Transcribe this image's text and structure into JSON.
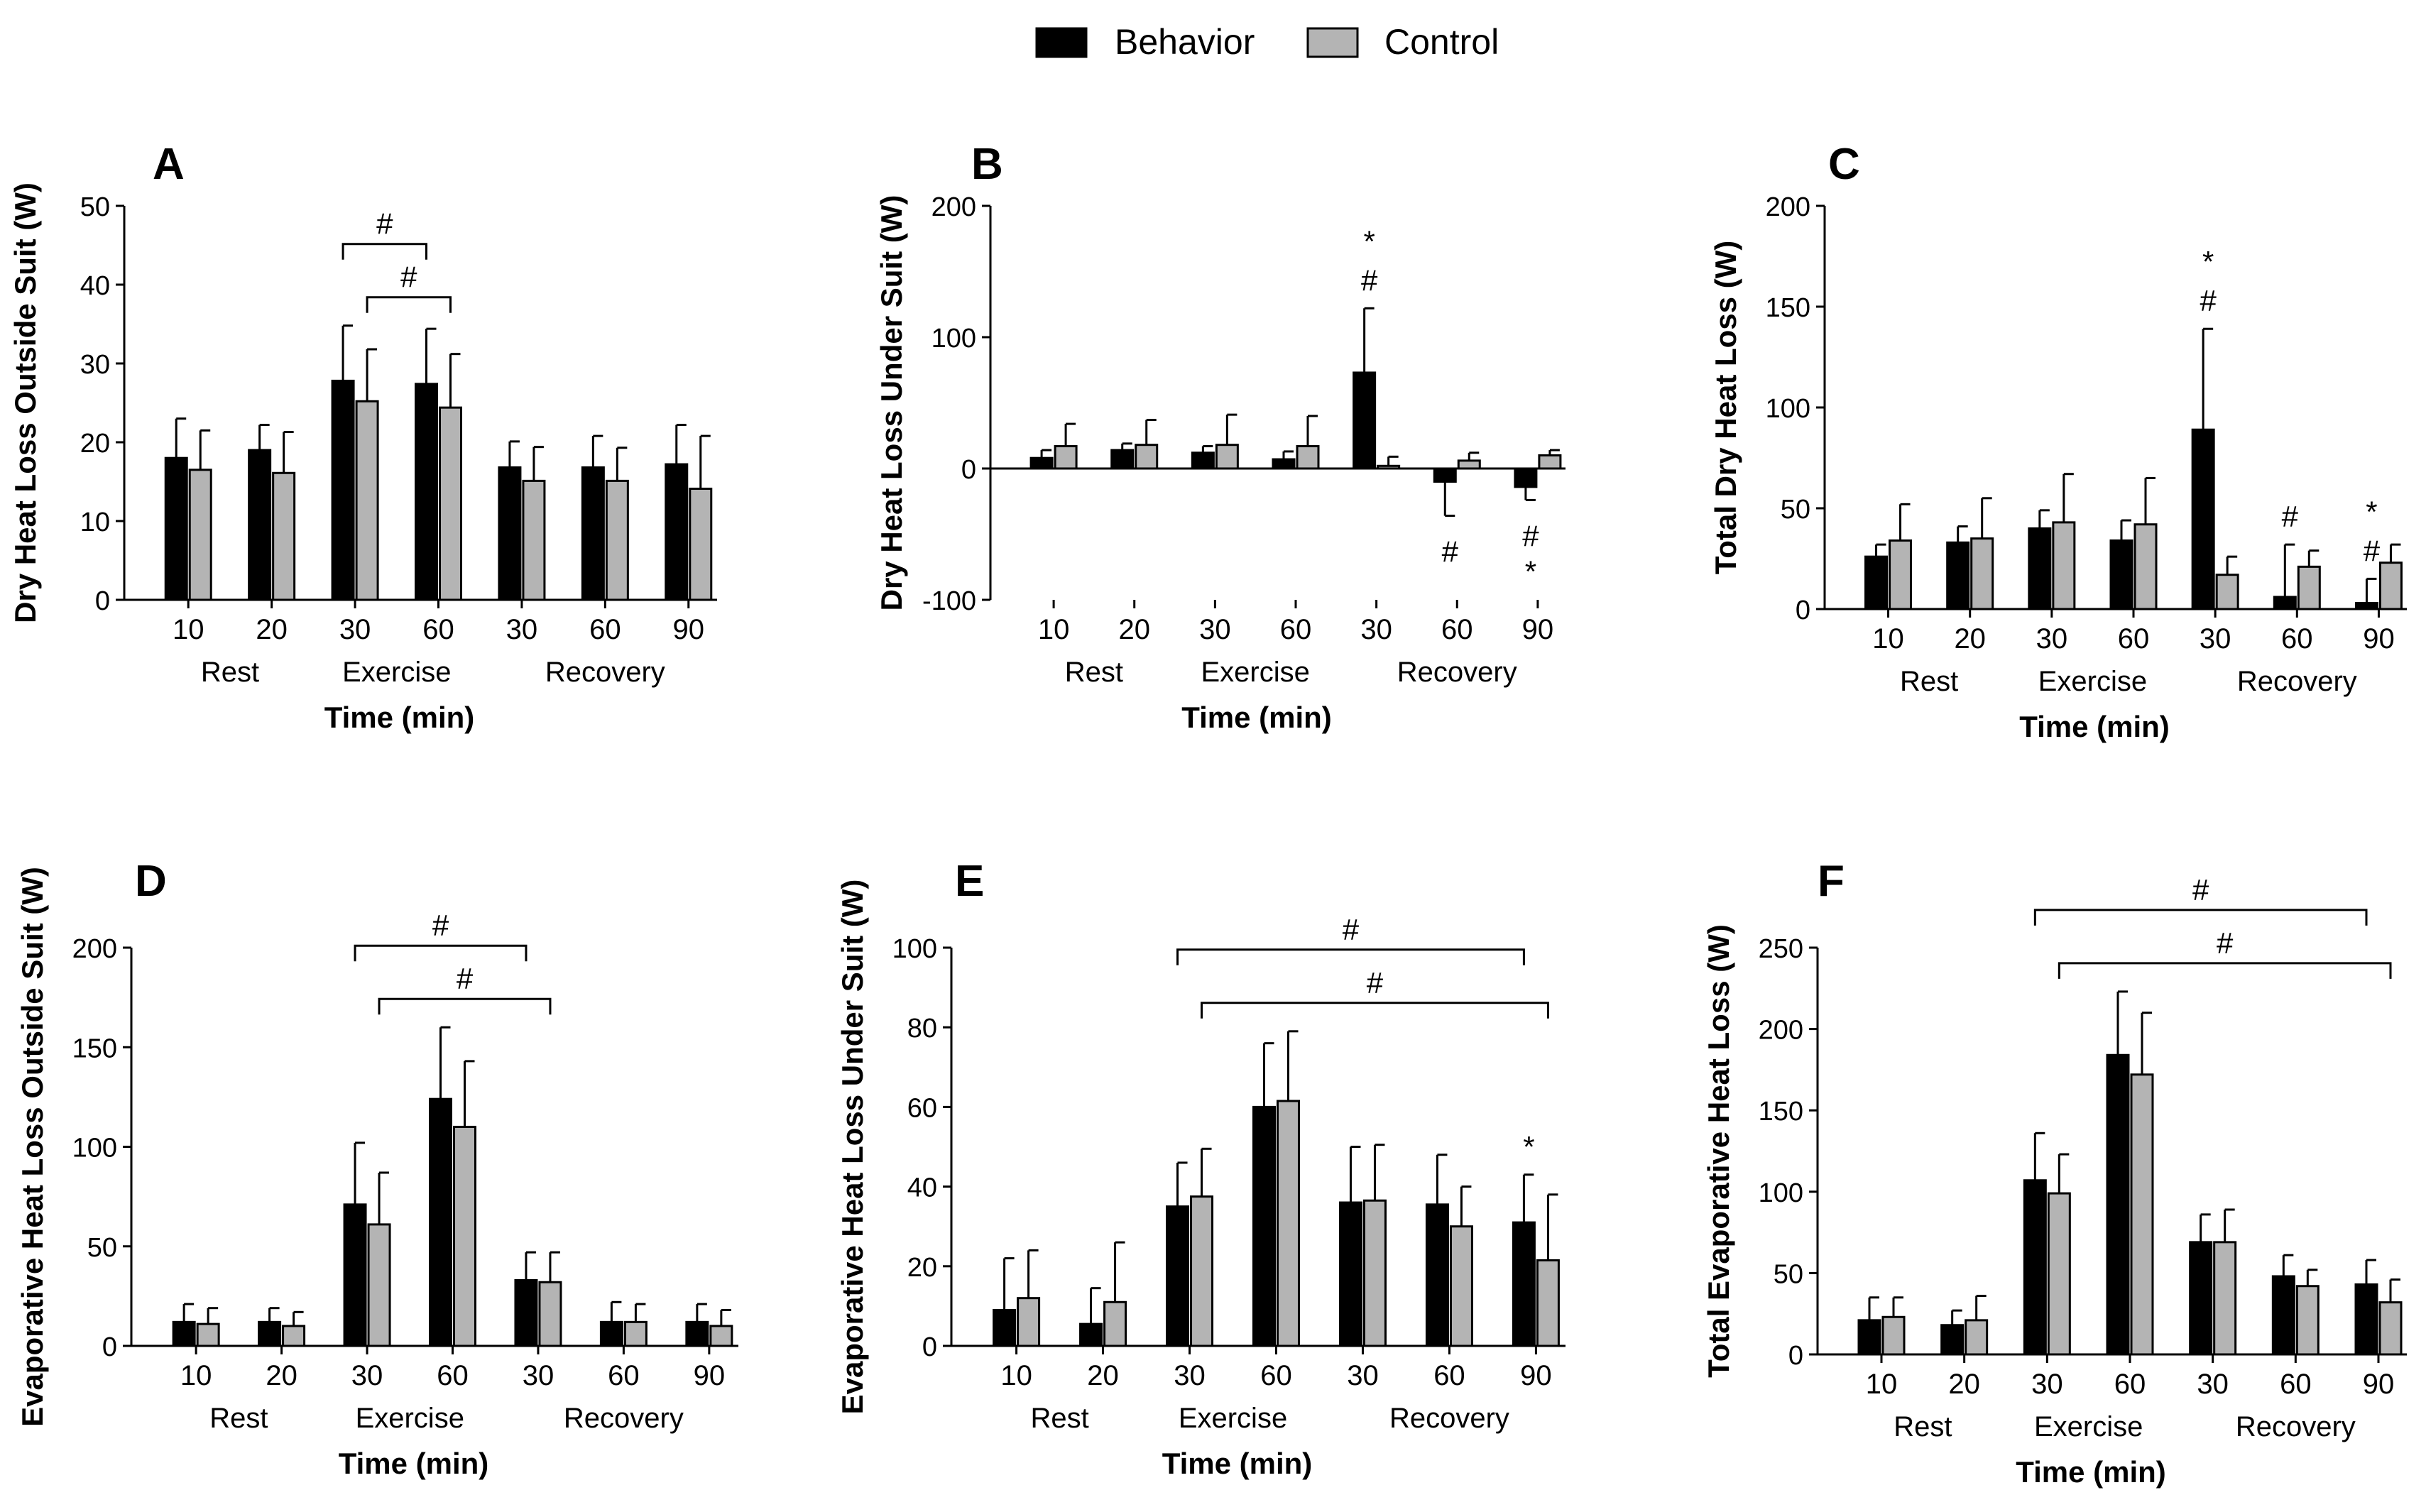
{
  "legend": {
    "entries": [
      {
        "label": "Behavior",
        "color": "#000000"
      },
      {
        "label": "Control",
        "color": "#b4b4b4"
      }
    ]
  },
  "time_groups": [
    "Rest",
    "Exercise",
    "Recovery"
  ],
  "series_colors": {
    "Behavior": "#000000",
    "Control": "#b4b4b4"
  },
  "chart_data": [
    {
      "panel": "A",
      "type": "bar",
      "ylabel": "Dry Heat Loss Outside Suit (W)",
      "xlabel": "Time (min)",
      "categories": [
        "10",
        "20",
        "30",
        "60",
        "30",
        "60",
        "90"
      ],
      "ylim": [
        0,
        50
      ],
      "yticks": [
        0,
        10,
        20,
        30,
        40,
        50
      ],
      "ytick_labels": [
        "0",
        "10",
        "20",
        "30",
        "40",
        "50"
      ],
      "series": [
        {
          "name": "Behavior",
          "values": [
            18,
            19,
            27.8,
            27.4,
            16.8,
            16.8,
            17.2
          ],
          "errors": [
            5,
            3.2,
            7,
            7,
            3.3,
            4,
            5
          ]
        },
        {
          "name": "Control",
          "values": [
            16.5,
            16.1,
            25.2,
            24.4,
            15.1,
            15.1,
            14.1
          ],
          "errors": [
            5,
            5.2,
            6.6,
            6.8,
            4.3,
            4.2,
            6.7
          ]
        }
      ],
      "annotations": [
        {
          "text": "#",
          "type": "bracket",
          "from": [
            2,
            "Behavior"
          ],
          "to": [
            3,
            "Behavior"
          ],
          "level": 1
        },
        {
          "text": "#",
          "type": "bracket",
          "from": [
            2,
            "Control"
          ],
          "to": [
            3,
            "Control"
          ],
          "level": 0
        }
      ]
    },
    {
      "panel": "B",
      "type": "bar",
      "ylabel": "Dry Heat Loss Under Suit (W)",
      "xlabel": "Time (min)",
      "categories": [
        "10",
        "20",
        "30",
        "60",
        "30",
        "60",
        "90"
      ],
      "ylim": [
        -100,
        200
      ],
      "yticks": [
        -100,
        0,
        100,
        200
      ],
      "ytick_labels": [
        "-100",
        "0",
        "100",
        "200"
      ],
      "series": [
        {
          "name": "Behavior",
          "values": [
            8,
            14,
            12,
            7,
            73,
            -10,
            -14
          ],
          "errors": [
            6,
            5,
            5,
            6,
            49,
            26,
            10
          ]
        },
        {
          "name": "Control",
          "values": [
            17,
            18,
            18,
            17,
            2,
            6,
            10
          ],
          "errors": [
            17,
            19,
            23,
            23,
            7,
            6,
            4
          ]
        }
      ],
      "annotations": [
        {
          "text": "*",
          "type": "mark",
          "at": [
            4,
            "Behavior"
          ],
          "position": "above",
          "offset": 1
        },
        {
          "text": "#",
          "type": "mark",
          "at": [
            4,
            "Behavior"
          ],
          "position": "above",
          "offset": 0
        },
        {
          "text": "#",
          "type": "mark",
          "at": [
            5,
            "Behavior"
          ],
          "position": "below",
          "offset": 0
        },
        {
          "text": "#",
          "type": "mark",
          "at": [
            6,
            "Behavior"
          ],
          "position": "below",
          "offset": 0
        },
        {
          "text": "*",
          "type": "mark",
          "at": [
            6,
            "Behavior"
          ],
          "position": "below",
          "offset": 1
        }
      ]
    },
    {
      "panel": "C",
      "type": "bar",
      "ylabel": "Total Dry Heat Loss (W)",
      "xlabel": "Time (min)",
      "categories": [
        "10",
        "20",
        "30",
        "60",
        "30",
        "60",
        "90"
      ],
      "ylim": [
        0,
        200
      ],
      "yticks": [
        0,
        50,
        100,
        150,
        200
      ],
      "ytick_labels": [
        "0",
        "50",
        "100",
        "150",
        "200"
      ],
      "series": [
        {
          "name": "Behavior",
          "values": [
            26,
            33,
            40,
            34,
            89,
            6,
            3
          ],
          "errors": [
            6,
            8,
            9,
            10,
            50,
            26,
            12
          ]
        },
        {
          "name": "Control",
          "values": [
            34,
            35,
            43,
            42,
            17,
            21,
            23
          ],
          "errors": [
            18,
            20,
            24,
            23,
            9,
            8,
            9
          ]
        }
      ],
      "annotations": [
        {
          "text": "*",
          "type": "mark",
          "at": [
            4,
            "Behavior"
          ],
          "position": "above",
          "offset": 1
        },
        {
          "text": "#",
          "type": "mark",
          "at": [
            4,
            "Behavior"
          ],
          "position": "above",
          "offset": 0
        },
        {
          "text": "#",
          "type": "mark",
          "at": [
            5,
            "Behavior"
          ],
          "position": "above",
          "offset": 0
        },
        {
          "text": "*",
          "type": "mark",
          "at": [
            6,
            "Behavior"
          ],
          "position": "above",
          "offset": 1
        },
        {
          "text": "#",
          "type": "mark",
          "at": [
            6,
            "Behavior"
          ],
          "position": "above",
          "offset": 0
        }
      ]
    },
    {
      "panel": "D",
      "type": "bar",
      "ylabel": "Evaporative Heat Loss Outside Suit (W)",
      "xlabel": "Time (min)",
      "categories": [
        "10",
        "20",
        "30",
        "60",
        "30",
        "60",
        "90"
      ],
      "ylim": [
        0,
        200
      ],
      "yticks": [
        0,
        50,
        100,
        150,
        200
      ],
      "ytick_labels": [
        "0",
        "50",
        "100",
        "150",
        "200"
      ],
      "series": [
        {
          "name": "Behavior",
          "values": [
            12,
            12,
            71,
            124,
            33,
            12,
            12
          ],
          "errors": [
            9,
            7,
            31,
            36,
            14,
            10,
            9
          ]
        },
        {
          "name": "Control",
          "values": [
            11,
            10,
            61,
            110,
            32,
            12,
            10
          ],
          "errors": [
            8,
            7,
            26,
            33,
            15,
            9,
            8
          ]
        }
      ],
      "annotations": [
        {
          "text": "#",
          "type": "bracket",
          "from": [
            2,
            "Behavior"
          ],
          "to": [
            4,
            "Behavior"
          ],
          "level": 1
        },
        {
          "text": "#",
          "type": "bracket",
          "from": [
            2,
            "Control"
          ],
          "to": [
            4,
            "Control"
          ],
          "level": 0
        }
      ]
    },
    {
      "panel": "E",
      "type": "bar",
      "ylabel": "Evaporative Heat Loss Under Suit (W)",
      "xlabel": "Time (min)",
      "categories": [
        "10",
        "20",
        "30",
        "60",
        "30",
        "60",
        "90"
      ],
      "ylim": [
        0,
        100
      ],
      "yticks": [
        0,
        20,
        40,
        60,
        80,
        100
      ],
      "ytick_labels": [
        "0",
        "20",
        "40",
        "60",
        "80",
        "100"
      ],
      "series": [
        {
          "name": "Behavior",
          "values": [
            9,
            5.5,
            35,
            60,
            36,
            35.5,
            31
          ],
          "errors": [
            13,
            9,
            11,
            16,
            14,
            12.5,
            12
          ]
        },
        {
          "name": "Control",
          "values": [
            12,
            11,
            37.5,
            61.5,
            36.5,
            30,
            21.5
          ],
          "errors": [
            12,
            15,
            12,
            17.5,
            14,
            10,
            16.5
          ]
        }
      ],
      "annotations": [
        {
          "text": "#",
          "type": "bracket",
          "from": [
            2,
            "Behavior"
          ],
          "to": [
            6,
            "Behavior"
          ],
          "level": 1
        },
        {
          "text": "#",
          "type": "bracket",
          "from": [
            2,
            "Control"
          ],
          "to": [
            6,
            "Control"
          ],
          "level": 0
        },
        {
          "text": "*",
          "type": "mark",
          "at": [
            6,
            "Behavior"
          ],
          "position": "above",
          "offset": 0
        }
      ]
    },
    {
      "panel": "F",
      "type": "bar",
      "ylabel": "Total Evaporative Heat Loss (W)",
      "xlabel": "Time (min)",
      "categories": [
        "10",
        "20",
        "30",
        "60",
        "30",
        "60",
        "90"
      ],
      "ylim": [
        0,
        250
      ],
      "yticks": [
        0,
        50,
        100,
        150,
        200,
        250
      ],
      "ytick_labels": [
        "0",
        "50",
        "100",
        "150",
        "200",
        "250"
      ],
      "series": [
        {
          "name": "Behavior",
          "values": [
            21,
            18,
            107,
            184,
            69,
            48,
            43
          ],
          "errors": [
            14,
            9,
            29,
            39,
            17,
            13,
            15
          ]
        },
        {
          "name": "Control",
          "values": [
            23,
            21,
            99,
            172,
            69,
            42,
            32
          ],
          "errors": [
            12,
            15,
            24,
            38,
            20,
            10,
            14
          ]
        }
      ],
      "annotations": [
        {
          "text": "#",
          "type": "bracket",
          "from": [
            2,
            "Behavior"
          ],
          "to": [
            6,
            "Behavior"
          ],
          "level": 1
        },
        {
          "text": "#",
          "type": "bracket",
          "from": [
            2,
            "Control"
          ],
          "to": [
            6,
            "Control"
          ],
          "level": 0
        }
      ]
    }
  ]
}
